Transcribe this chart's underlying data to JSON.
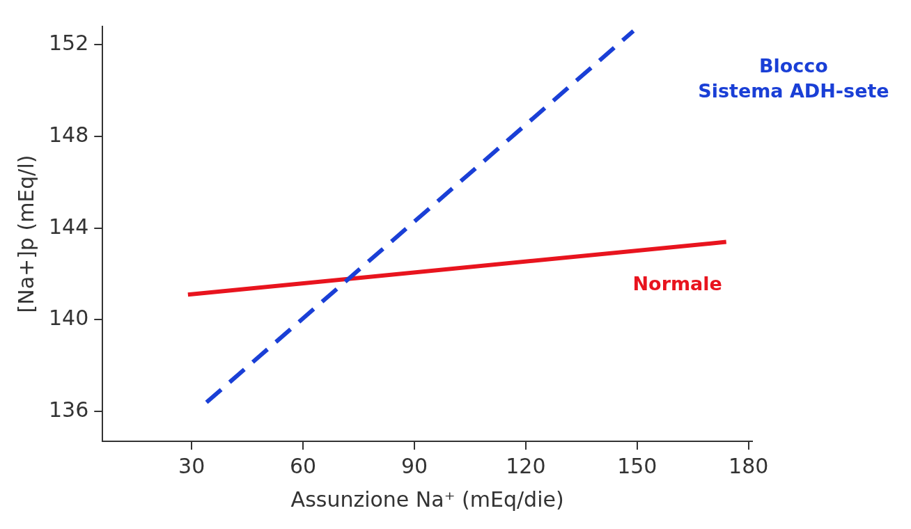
{
  "chart_data": {
    "type": "line",
    "xlabel": "Assunzione Na⁺ (mEq/die)",
    "ylabel": "[Na+]p (mEq/l)",
    "xlim": [
      6,
      181
    ],
    "xticks": [
      30,
      60,
      90,
      120,
      150,
      180
    ],
    "ylim": [
      134.7,
      152.8
    ],
    "yticks": [
      136,
      140,
      144,
      148,
      152
    ],
    "grid": false,
    "legend": false,
    "marker": "none",
    "series": [
      {
        "name": "Blocco\nSistema ADH-sete",
        "color": "#1a3fd6",
        "x": [
          34,
          149
        ],
        "values": [
          136.4,
          152.6
        ],
        "line_style": "dashed"
      },
      {
        "name": "Normale",
        "color": "#e8141e",
        "x": [
          29,
          174
        ],
        "values": [
          141.1,
          143.4
        ],
        "line_style": "solid"
      }
    ]
  }
}
